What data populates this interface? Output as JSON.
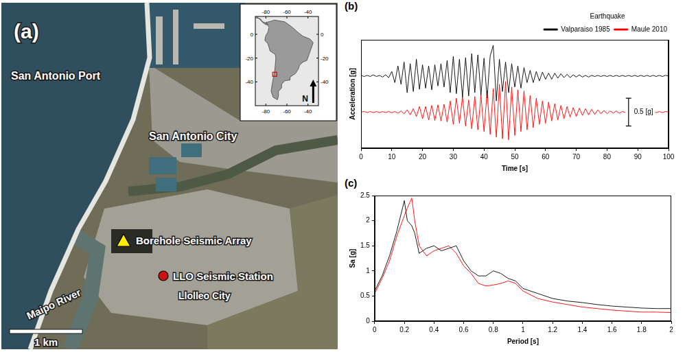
{
  "map": {
    "panel": "(a)",
    "labels": {
      "port": "San Antonio Port",
      "city": "San Antonio City",
      "borehole": "Borehole Seismic Array",
      "station": "LLO Seismic Station",
      "llolleo": "Llolleo City",
      "river": "Maipo River"
    },
    "scale_bar": "1 km",
    "inset": {
      "xlim": [
        -90,
        -30
      ],
      "ylim": [
        -60,
        15
      ],
      "xticks": [
        -80,
        -60,
        -40
      ],
      "yticks": [
        0,
        -20,
        -40
      ],
      "north": "N"
    }
  },
  "chart_data": [
    {
      "type": "line",
      "panel": "(b)",
      "x": [
        0,
        1,
        2,
        3,
        4,
        5,
        6,
        7,
        8,
        9,
        10,
        11,
        12,
        13,
        14,
        15,
        16,
        17,
        18,
        19,
        20,
        21,
        22,
        23,
        24,
        25,
        26,
        27,
        28,
        29,
        30,
        31,
        32,
        33,
        34,
        35,
        36,
        37,
        38,
        39,
        40,
        41,
        42,
        43,
        44,
        45,
        46,
        47,
        48,
        49,
        50,
        51,
        52,
        53,
        54,
        55,
        56,
        57,
        58,
        59,
        60,
        61,
        62,
        63,
        64,
        65,
        66,
        67,
        68,
        69,
        70,
        71,
        72,
        73,
        74,
        75,
        76,
        77,
        78,
        79,
        80,
        81,
        82,
        83,
        84,
        85,
        86,
        87,
        88,
        89,
        90,
        91,
        92,
        93,
        94,
        95,
        96,
        97,
        98,
        99,
        100
      ],
      "xlim": [
        0,
        100
      ],
      "xticks": [
        0,
        10,
        20,
        30,
        40,
        50,
        60,
        70,
        80,
        90,
        100
      ],
      "ylim": [
        -1.3,
        0.65
      ],
      "y2lim": [
        -0.65,
        1.3
      ],
      "xlabel": "Time [s]",
      "ylabel": "Acceleration [g]",
      "tick_labels": "x",
      "grid": false,
      "legend": "top",
      "legend_title": "Earthquake",
      "series": [
        {
          "name": "Valparaiso 1985",
          "color": "#000000",
          "values": [
            0.01,
            -0.01,
            0.01,
            -0.01,
            0.02,
            -0.01,
            0.01,
            -0.02,
            0.02,
            -0.03,
            0.08,
            -0.12,
            0.18,
            -0.15,
            0.25,
            -0.3,
            0.22,
            -0.28,
            0.3,
            -0.24,
            0.2,
            -0.22,
            0.18,
            -0.25,
            0.2,
            -0.18,
            0.22,
            -0.2,
            0.28,
            -0.3,
            0.35,
            -0.32,
            0.3,
            -0.38,
            0.33,
            -0.36,
            0.4,
            -0.3,
            0.38,
            -0.35,
            0.32,
            -0.4,
            0.36,
            0.55,
            -0.45,
            0.3,
            -0.28,
            0.25,
            -0.3,
            0.22,
            -0.2,
            0.18,
            -0.22,
            0.15,
            -0.12,
            0.1,
            -0.12,
            0.08,
            -0.09,
            0.07,
            -0.06,
            0.05,
            -0.06,
            0.05,
            -0.04,
            0.04,
            -0.03,
            0.03,
            -0.03,
            0.02,
            -0.02,
            0.02,
            -0.02,
            0.01,
            -0.02,
            0.01,
            -0.01,
            0.01,
            -0.01,
            0.01,
            -0.01,
            0.01,
            -0.01,
            0.01,
            -0.01,
            0.01,
            -0.01,
            0.01,
            -0.01,
            0.01,
            -0.01,
            0.01,
            -0.01,
            0.01,
            -0.01,
            0.01,
            -0.01,
            0.01,
            -0.01,
            0.01,
            0
          ]
        },
        {
          "name": "Maule 2010",
          "color": "#ff0000",
          "axis": "y2",
          "values": [
            0,
            0.01,
            -0.01,
            0.01,
            -0.01,
            0.01,
            -0.01,
            0.01,
            -0.01,
            0.01,
            -0.01,
            0.01,
            -0.02,
            0.02,
            -0.03,
            0.04,
            -0.05,
            0.06,
            -0.08,
            0.1,
            -0.12,
            0.1,
            -0.14,
            0.12,
            -0.15,
            0.13,
            -0.16,
            0.14,
            -0.18,
            0.2,
            -0.22,
            0.25,
            -0.2,
            0.28,
            -0.25,
            0.22,
            -0.3,
            0.28,
            -0.32,
            0.3,
            -0.35,
            0.38,
            -0.4,
            0.42,
            -0.45,
            0.5,
            -0.48,
            0.55,
            -0.5,
            0.45,
            -0.42,
            0.4,
            -0.35,
            0.38,
            -0.32,
            0.3,
            -0.28,
            0.25,
            -0.22,
            0.2,
            -0.2,
            0.18,
            -0.16,
            0.15,
            -0.14,
            0.12,
            -0.12,
            0.1,
            -0.09,
            0.08,
            -0.08,
            0.07,
            -0.06,
            0.06,
            -0.05,
            0.05,
            -0.04,
            0.04,
            -0.03,
            0.03,
            -0.03,
            0.02,
            -0.02,
            0.02,
            -0.02,
            0.01,
            -0.01,
            0.01,
            -0.01,
            0.01,
            -0.01,
            0.01,
            -0.01,
            0.01,
            -0.01,
            0.01,
            -0.01,
            0.01,
            -0.01,
            0.01,
            0
          ]
        }
      ],
      "scale_bar": {
        "value": 0.5,
        "label": "0.5 [g]"
      }
    },
    {
      "type": "line",
      "panel": "(c)",
      "x": [
        0,
        0.05,
        0.1,
        0.15,
        0.2,
        0.22,
        0.25,
        0.27,
        0.3,
        0.35,
        0.4,
        0.45,
        0.5,
        0.55,
        0.6,
        0.65,
        0.7,
        0.75,
        0.8,
        0.85,
        0.9,
        0.95,
        1,
        1.1,
        1.2,
        1.3,
        1.4,
        1.5,
        1.6,
        1.7,
        1.8,
        1.9,
        2
      ],
      "xlim": [
        0,
        2
      ],
      "xticks": [
        0,
        0.2,
        0.4,
        0.6,
        0.8,
        1,
        1.2,
        1.4,
        1.6,
        1.8,
        2
      ],
      "ylim": [
        0,
        2.5
      ],
      "yticks": [
        0,
        0.5,
        1,
        1.5,
        2,
        2.5
      ],
      "xlabel": "Period [s]",
      "ylabel": "Sa [g]",
      "grid": false,
      "series": [
        {
          "color": "#000000",
          "values": [
            0.6,
            0.9,
            1.3,
            1.8,
            2.4,
            2.0,
            1.9,
            1.75,
            1.35,
            1.45,
            1.5,
            1.4,
            1.45,
            1.5,
            1.2,
            1.0,
            0.9,
            0.9,
            1.0,
            0.95,
            0.85,
            0.8,
            0.65,
            0.55,
            0.45,
            0.4,
            0.37,
            0.33,
            0.3,
            0.28,
            0.26,
            0.25,
            0.25
          ]
        },
        {
          "color": "#ff0000",
          "values": [
            0.55,
            0.85,
            1.2,
            1.7,
            2.1,
            2.25,
            2.45,
            2.0,
            1.5,
            1.3,
            1.4,
            1.45,
            1.5,
            1.35,
            1.1,
            0.95,
            0.75,
            0.7,
            0.72,
            0.75,
            0.8,
            0.75,
            0.6,
            0.45,
            0.38,
            0.33,
            0.28,
            0.25,
            0.22,
            0.2,
            0.18,
            0.18,
            0.17
          ]
        }
      ]
    }
  ]
}
